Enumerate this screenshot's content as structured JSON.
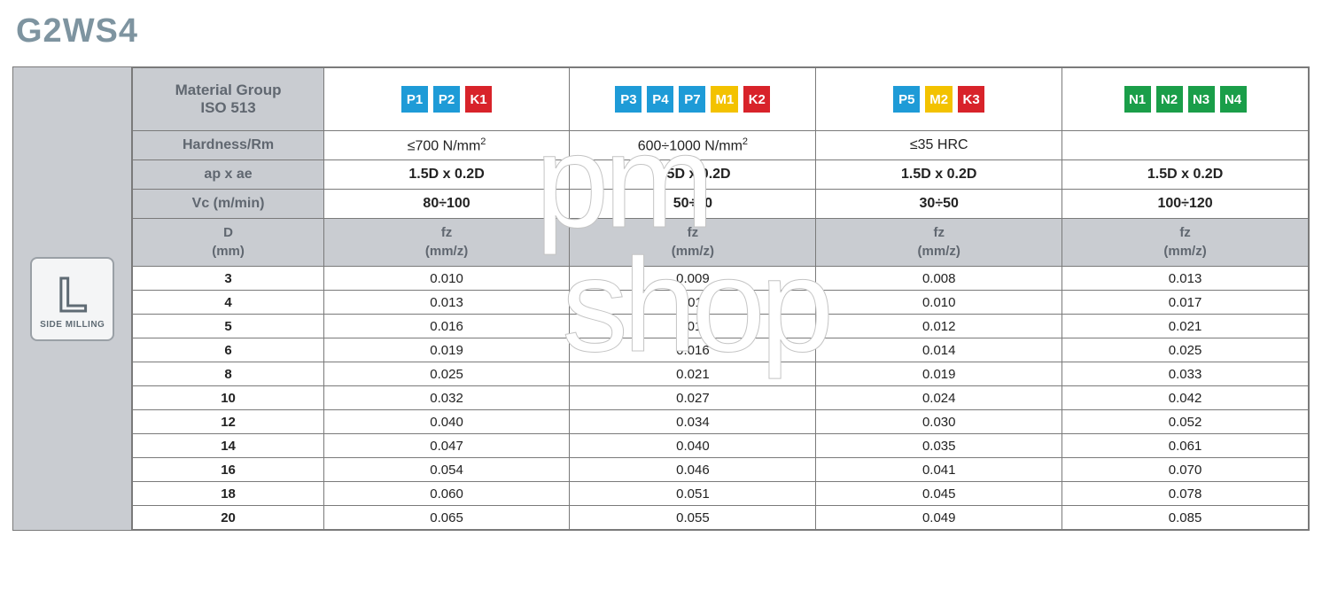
{
  "title": "G2WS4",
  "side_badge": {
    "letter": "L",
    "caption": "SIDE MILLING"
  },
  "watermark": {
    "line1": "pm",
    "line2": "shop"
  },
  "colors": {
    "P": "#1e9bd7",
    "K": "#d8232a",
    "M": "#f3c200",
    "N": "#1a9e49"
  },
  "header_labels": {
    "material_group": "Material Group\nISO 513",
    "hardness": "Hardness/Rm",
    "apae": "ap x ae",
    "vc": "Vc (m/min)",
    "d": "D\n(mm)",
    "fz": "fz\n(mm/z)"
  },
  "groups": [
    {
      "badges": [
        [
          "P",
          "P1"
        ],
        [
          "P",
          "P2"
        ],
        [
          "K",
          "K1"
        ]
      ],
      "hardness": "≤700 N/mm²",
      "apae": "1.5D x 0.2D",
      "vc": "80÷100"
    },
    {
      "badges": [
        [
          "P",
          "P3"
        ],
        [
          "P",
          "P4"
        ],
        [
          "P",
          "P7"
        ],
        [
          "M",
          "M1"
        ],
        [
          "K",
          "K2"
        ]
      ],
      "hardness": "600÷1000 N/mm²",
      "apae": "1.5D x 0.2D",
      "vc": "50÷70"
    },
    {
      "badges": [
        [
          "P",
          "P5"
        ],
        [
          "M",
          "M2"
        ],
        [
          "K",
          "K3"
        ]
      ],
      "hardness": "≤35 HRC",
      "apae": "1.5D x 0.2D",
      "vc": "30÷50"
    },
    {
      "badges": [
        [
          "N",
          "N1"
        ],
        [
          "N",
          "N2"
        ],
        [
          "N",
          "N3"
        ],
        [
          "N",
          "N4"
        ]
      ],
      "hardness": "",
      "apae": "1.5D x 0.2D",
      "vc": "100÷120"
    }
  ],
  "rows": [
    {
      "d": "3",
      "fz": [
        "0.010",
        "0.009",
        "0.008",
        "0.013"
      ]
    },
    {
      "d": "4",
      "fz": [
        "0.013",
        "0.011",
        "0.010",
        "0.017"
      ]
    },
    {
      "d": "5",
      "fz": [
        "0.016",
        "0.014",
        "0.012",
        "0.021"
      ]
    },
    {
      "d": "6",
      "fz": [
        "0.019",
        "0.016",
        "0.014",
        "0.025"
      ]
    },
    {
      "d": "8",
      "fz": [
        "0.025",
        "0.021",
        "0.019",
        "0.033"
      ]
    },
    {
      "d": "10",
      "fz": [
        "0.032",
        "0.027",
        "0.024",
        "0.042"
      ]
    },
    {
      "d": "12",
      "fz": [
        "0.040",
        "0.034",
        "0.030",
        "0.052"
      ]
    },
    {
      "d": "14",
      "fz": [
        "0.047",
        "0.040",
        "0.035",
        "0.061"
      ]
    },
    {
      "d": "16",
      "fz": [
        "0.054",
        "0.046",
        "0.041",
        "0.070"
      ]
    },
    {
      "d": "18",
      "fz": [
        "0.060",
        "0.051",
        "0.045",
        "0.078"
      ]
    },
    {
      "d": "20",
      "fz": [
        "0.065",
        "0.055",
        "0.049",
        "0.085"
      ]
    }
  ]
}
